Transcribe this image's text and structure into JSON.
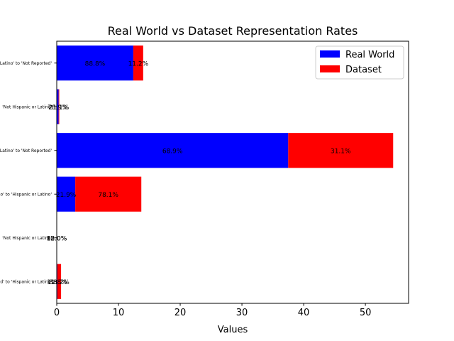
{
  "chart_data": {
    "type": "bar",
    "orientation": "horizontal",
    "stacked": true,
    "title": "Real World vs Dataset Representation Rates",
    "xlabel": "Values",
    "ylabel": "",
    "xlim": [
      0,
      57
    ],
    "xticks": [
      0,
      10,
      20,
      30,
      40,
      50
    ],
    "grid": false,
    "legend_position": "top-right",
    "categories": [
      "'Hispanic or Latino' to 'Not Reported'",
      "'Not Hispanic or Latino'",
      "'Not Hispanic or Latino' to 'Not Reported'",
      "'Not Hispanic or Latino' to 'Hispanic or Latino'",
      "'Not Hispanic or Latino'",
      "'Not Reported' to 'Hispanic or Latino'"
    ],
    "series": [
      {
        "name": "Real World",
        "color": "#0000ff",
        "values": [
          12.4,
          0.3,
          37.5,
          3.0,
          0.0,
          0.1
        ],
        "labels": [
          "88.8%",
          "78.9%",
          "68.9%",
          "21.9%",
          "88.0%",
          "11.8%"
        ]
      },
      {
        "name": "Dataset",
        "color": "#ff0000",
        "values": [
          1.6,
          0.1,
          17.0,
          10.7,
          0.0,
          0.6
        ],
        "labels": [
          "11.2%",
          "21.1%",
          "31.1%",
          "78.1%",
          "12.0%",
          "88.2%"
        ]
      }
    ]
  }
}
